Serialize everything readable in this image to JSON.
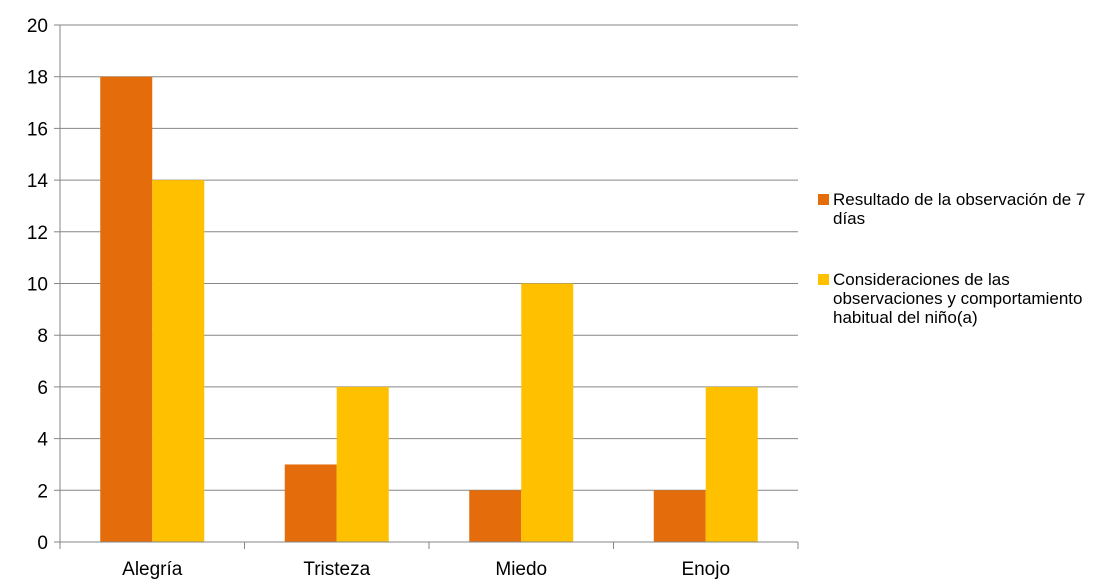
{
  "chart_data": {
    "type": "bar",
    "categories": [
      "Alegría",
      "Tristeza",
      "Miedo",
      "Enojo"
    ],
    "series": [
      {
        "name": "Resultado de la observación de 7 días",
        "values": [
          18,
          3,
          2,
          2
        ],
        "color": "#E46C0A"
      },
      {
        "name": "Consideraciones de las observaciones y comportamiento habitual del niño(a)",
        "values": [
          14,
          6,
          10,
          6
        ],
        "color": "#FFC000"
      }
    ],
    "y_ticks": [
      "0",
      "2",
      "4",
      "6",
      "8",
      "10",
      "12",
      "14",
      "16",
      "18",
      "20"
    ],
    "ylim": [
      0,
      20
    ],
    "grid": true,
    "legend_position": "right",
    "title": "",
    "xlabel": "",
    "ylabel": ""
  }
}
